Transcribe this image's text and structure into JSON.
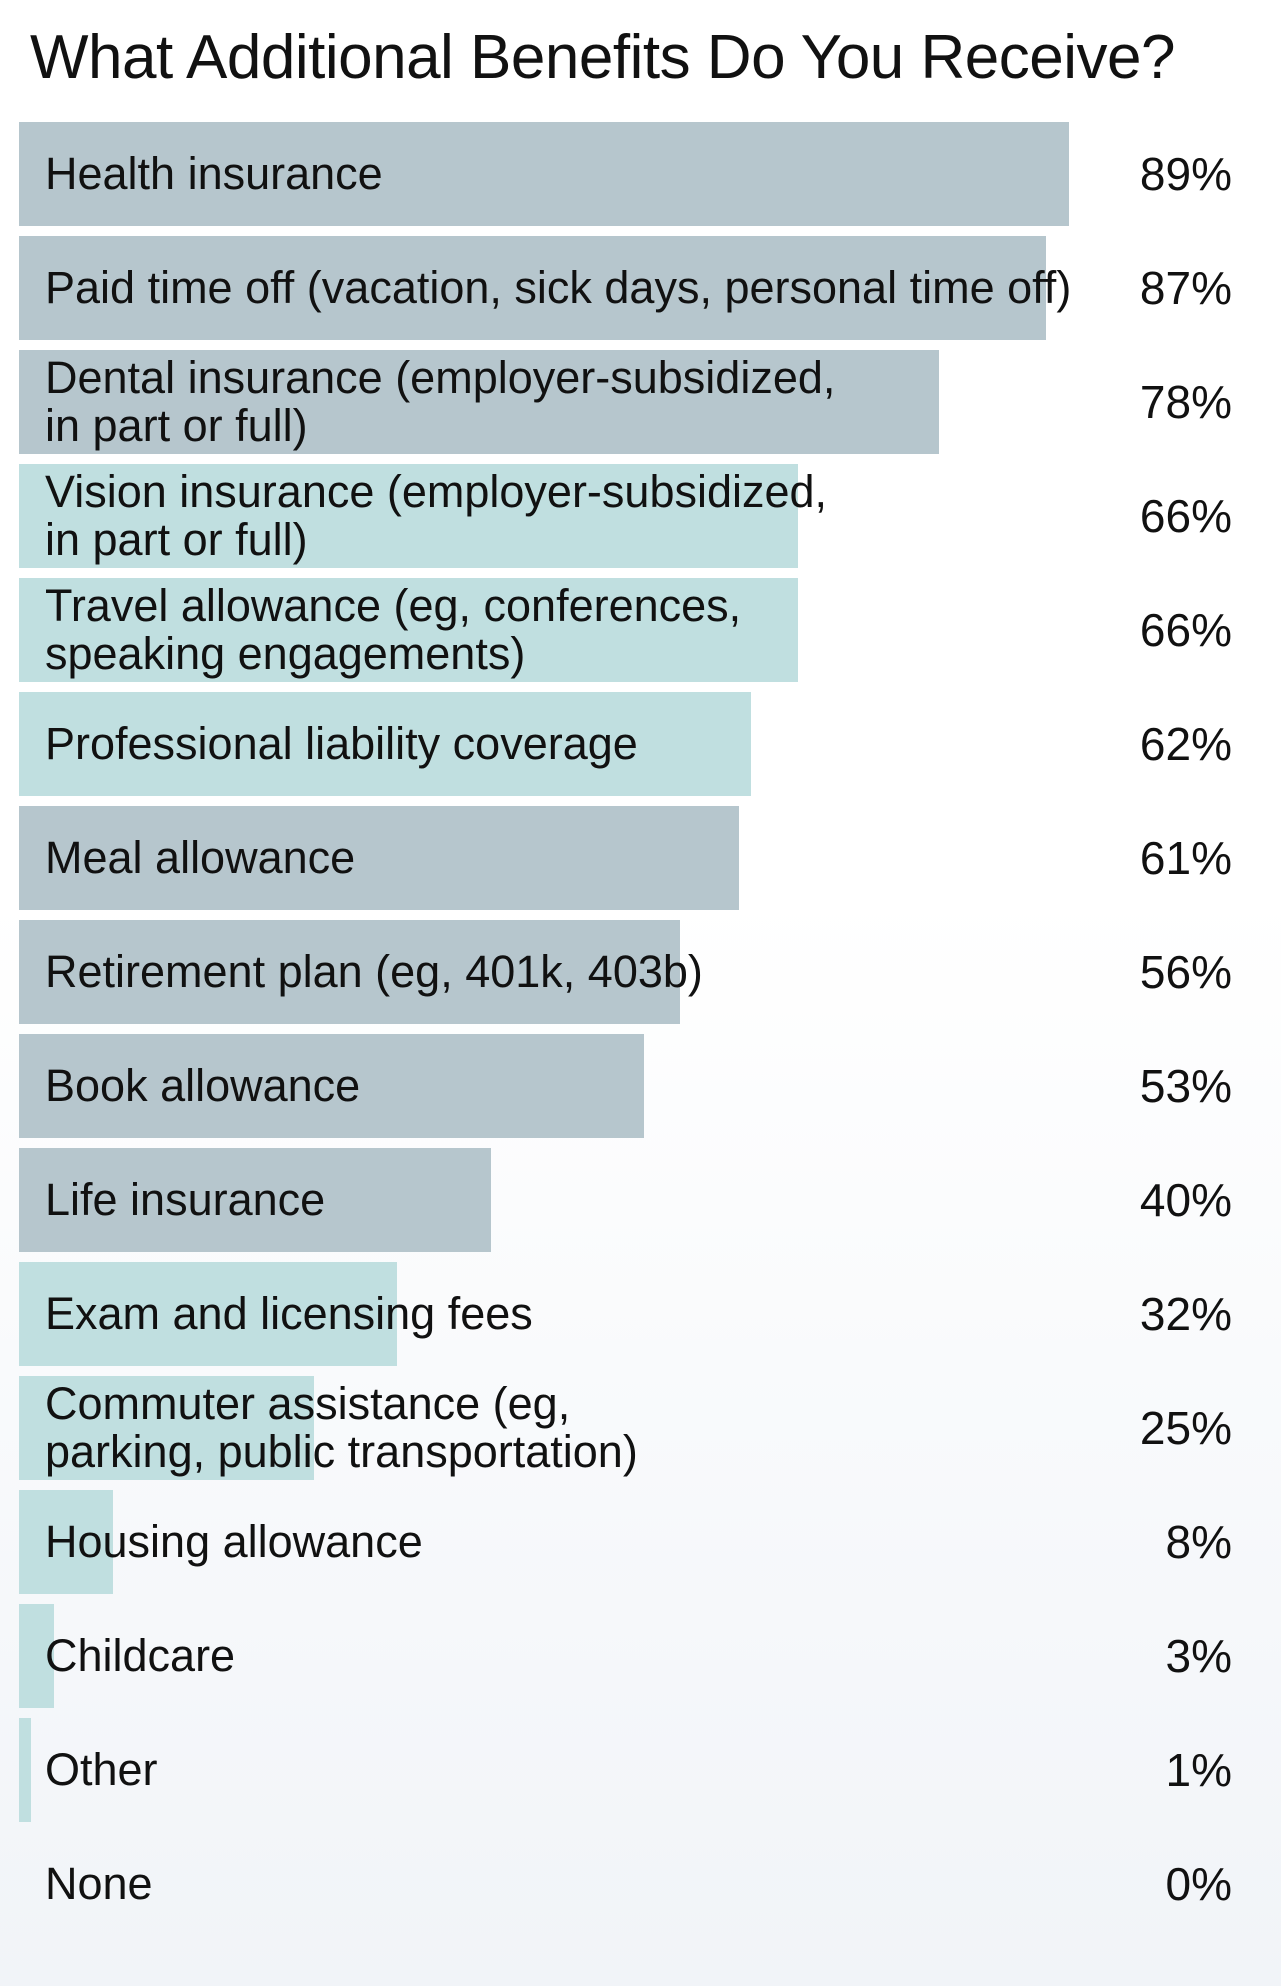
{
  "chart_data": {
    "type": "bar",
    "orientation": "horizontal",
    "title": "What Additional Benefits Do You Receive?",
    "xlim": [
      0,
      100
    ],
    "unit": "%",
    "grid": false,
    "categories": [
      "Health insurance",
      "Paid time off (vacation, sick days, personal time off)",
      "Dental insurance (employer-subsidized,\nin part or full)",
      "Vision insurance (employer-subsidized,\nin part or full)",
      "Travel allowance (eg, conferences,\nspeaking engagements)",
      "Professional liability coverage",
      "Meal allowance",
      "Retirement plan (eg, 401k, 403b)",
      "Book allowance",
      "Life insurance",
      "Exam and licensing fees",
      "Commuter assistance (eg,\nparking, public transportation)",
      "Housing allowance",
      "Childcare",
      "Other",
      "None"
    ],
    "values": [
      89,
      87,
      78,
      66,
      66,
      62,
      61,
      56,
      53,
      40,
      32,
      25,
      8,
      3,
      1,
      0
    ],
    "value_labels": [
      "89%",
      "87%",
      "78%",
      "66%",
      "66%",
      "62%",
      "61%",
      "56%",
      "53%",
      "40%",
      "32%",
      "25%",
      "8%",
      "3%",
      "1%",
      "0%"
    ],
    "bar_colors": [
      "gray",
      "gray",
      "gray",
      "teal",
      "teal",
      "teal",
      "gray",
      "gray",
      "gray",
      "gray",
      "teal",
      "teal",
      "teal",
      "teal",
      "teal",
      "teal"
    ],
    "palette": {
      "gray": "#b6c6cd",
      "teal": "#c0dfe0",
      "text": "#111111"
    }
  }
}
